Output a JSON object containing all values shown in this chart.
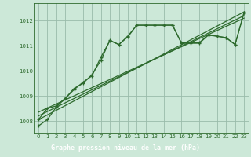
{
  "xlabel": "Graphe pression niveau de la mer (hPa)",
  "bg_color": "#cce8d8",
  "plot_bg_color": "#cce8d8",
  "label_bg_color": "#2d6a2d",
  "label_text_color": "#ffffff",
  "grid_color": "#99bbaa",
  "line_color": "#2d6a2d",
  "xlim": [
    -0.5,
    23.5
  ],
  "ylim": [
    1007.5,
    1012.7
  ],
  "xticks": [
    0,
    1,
    2,
    3,
    4,
    5,
    6,
    7,
    8,
    9,
    10,
    11,
    12,
    13,
    14,
    15,
    16,
    17,
    18,
    19,
    20,
    21,
    22,
    23
  ],
  "yticks": [
    1008,
    1009,
    1010,
    1011,
    1012
  ],
  "series1_x": [
    0,
    1,
    2,
    3,
    4,
    5,
    6,
    7,
    8,
    9,
    10,
    11,
    12,
    13,
    14,
    15,
    16,
    17,
    18,
    19,
    20,
    21,
    22,
    23
  ],
  "series1_y": [
    1007.8,
    1008.05,
    1008.55,
    1008.9,
    1009.25,
    1009.55,
    1009.8,
    1010.55,
    1011.2,
    1011.05,
    1011.35,
    1011.82,
    1011.82,
    1011.82,
    1011.82,
    1011.82,
    1011.1,
    1011.1,
    1011.1,
    1011.42,
    1011.38,
    1011.32,
    1011.05,
    1012.32
  ],
  "series2_x": [
    0,
    1,
    2,
    3,
    4,
    5,
    6,
    7,
    8,
    9,
    10,
    11,
    12,
    13,
    14,
    15,
    16,
    17,
    18,
    19,
    20,
    21,
    22,
    23
  ],
  "series2_y": [
    1008.05,
    1008.5,
    1008.6,
    1008.9,
    1009.3,
    1009.5,
    1009.85,
    1010.42,
    1011.22,
    1011.05,
    1011.38,
    1011.82,
    1011.82,
    1011.82,
    1011.82,
    1011.82,
    1011.12,
    1011.12,
    1011.12,
    1011.45,
    1011.38,
    1011.32,
    1011.05,
    1012.32
  ],
  "trend1_x": [
    0,
    23
  ],
  "trend1_y": [
    1008.05,
    1012.35
  ],
  "trend2_x": [
    0,
    23
  ],
  "trend2_y": [
    1008.2,
    1012.2
  ],
  "trend3_x": [
    0,
    23
  ],
  "trend3_y": [
    1008.35,
    1012.1
  ]
}
